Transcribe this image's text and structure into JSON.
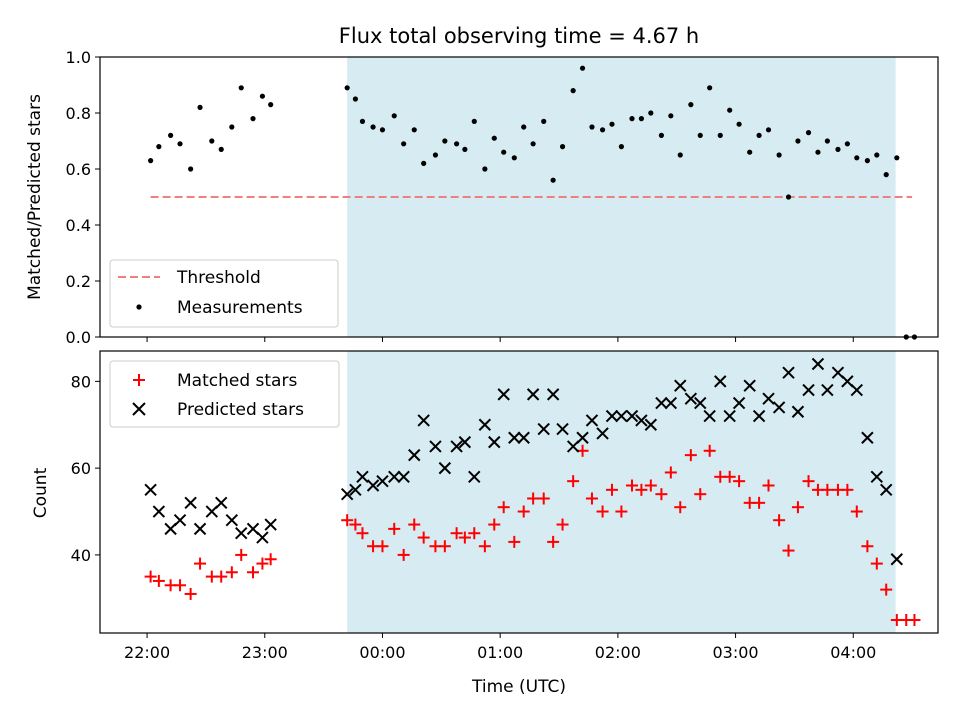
{
  "chart_data": {
    "title": "Flux total observing time = 4.67 h",
    "xlabel": "Time (UTC)",
    "x_unit": "hours UTC (values past 24 are after midnight)",
    "xlim": [
      21.6,
      28.72
    ],
    "xticks": [
      {
        "value": 22,
        "label": "22:00"
      },
      {
        "value": 23,
        "label": "23:00"
      },
      {
        "value": 24,
        "label": "00:00"
      },
      {
        "value": 25,
        "label": "01:00"
      },
      {
        "value": 26,
        "label": "02:00"
      },
      {
        "value": 27,
        "label": "03:00"
      },
      {
        "value": 28,
        "label": "04:00"
      }
    ],
    "shaded_interval": {
      "x": [
        23.7,
        28.36
      ],
      "color": "#add8e6"
    },
    "panels": [
      {
        "type": "scatter",
        "ylabel": "Matched/Predicted stars",
        "ylim": [
          0,
          1
        ],
        "yticks": [
          "0.0",
          "0.2",
          "0.4",
          "0.6",
          "0.8",
          "1.0"
        ],
        "legend_position": "lower-left",
        "threshold": {
          "name": "Threshold",
          "y": 0.5,
          "x": [
            22.03,
            28.5
          ],
          "color": "#f08080"
        },
        "series": [
          {
            "name": "Measurements",
            "marker": "dot",
            "color": "#000000",
            "x": [
              22.03,
              22.1,
              22.2,
              22.28,
              22.37,
              22.45,
              22.55,
              22.63,
              22.72,
              22.8,
              22.9,
              22.98,
              23.05,
              23.7,
              23.77,
              23.83,
              23.92,
              24.0,
              24.1,
              24.18,
              24.27,
              24.35,
              24.45,
              24.53,
              24.63,
              24.7,
              24.78,
              24.87,
              24.95,
              25.03,
              25.12,
              25.2,
              25.28,
              25.37,
              25.45,
              25.53,
              25.62,
              25.7,
              25.78,
              25.87,
              25.95,
              26.03,
              26.12,
              26.2,
              26.28,
              26.37,
              26.45,
              26.53,
              26.62,
              26.7,
              26.78,
              26.87,
              26.95,
              27.03,
              27.12,
              27.2,
              27.28,
              27.37,
              27.45,
              27.53,
              27.62,
              27.7,
              27.78,
              27.87,
              27.95,
              28.03,
              28.12,
              28.2,
              28.28,
              28.37,
              28.45,
              28.52
            ],
            "y": [
              0.63,
              0.68,
              0.72,
              0.69,
              0.6,
              0.82,
              0.7,
              0.67,
              0.75,
              0.89,
              0.78,
              0.86,
              0.83,
              0.89,
              0.85,
              0.77,
              0.75,
              0.74,
              0.79,
              0.69,
              0.74,
              0.62,
              0.65,
              0.7,
              0.69,
              0.67,
              0.77,
              0.6,
              0.71,
              0.66,
              0.64,
              0.75,
              0.69,
              0.77,
              0.56,
              0.68,
              0.88,
              0.96,
              0.75,
              0.74,
              0.76,
              0.68,
              0.78,
              0.78,
              0.8,
              0.72,
              0.79,
              0.65,
              0.83,
              0.72,
              0.89,
              0.72,
              0.81,
              0.76,
              0.66,
              0.72,
              0.74,
              0.65,
              0.5,
              0.7,
              0.73,
              0.66,
              0.7,
              0.67,
              0.69,
              0.64,
              0.63,
              0.65,
              0.58,
              0.64,
              0.0,
              0.0
            ]
          }
        ]
      },
      {
        "type": "scatter",
        "ylabel": "Count",
        "ylim": [
          22,
          87
        ],
        "yticks": [
          "40",
          "60",
          "80"
        ],
        "legend_position": "upper-left",
        "series": [
          {
            "name": "Matched stars",
            "marker": "plus",
            "color": "#ff0000",
            "x": [
              22.03,
              22.1,
              22.2,
              22.28,
              22.37,
              22.45,
              22.55,
              22.63,
              22.72,
              22.8,
              22.9,
              22.98,
              23.05,
              23.7,
              23.77,
              23.83,
              23.92,
              24.0,
              24.1,
              24.18,
              24.27,
              24.35,
              24.45,
              24.53,
              24.63,
              24.7,
              24.78,
              24.87,
              24.95,
              25.03,
              25.12,
              25.2,
              25.28,
              25.37,
              25.45,
              25.53,
              25.62,
              25.7,
              25.78,
              25.87,
              25.95,
              26.03,
              26.12,
              26.2,
              26.28,
              26.37,
              26.45,
              26.53,
              26.62,
              26.7,
              26.78,
              26.87,
              26.95,
              27.03,
              27.12,
              27.2,
              27.28,
              27.37,
              27.45,
              27.53,
              27.62,
              27.7,
              27.78,
              27.87,
              27.95,
              28.03,
              28.12,
              28.2,
              28.28,
              28.37,
              28.45,
              28.52
            ],
            "y": [
              35,
              34,
              33,
              33,
              31,
              38,
              35,
              35,
              36,
              40,
              36,
              38,
              39,
              48,
              47,
              45,
              42,
              42,
              46,
              40,
              47,
              44,
              42,
              42,
              45,
              44,
              45,
              42,
              47,
              51,
              43,
              50,
              53,
              53,
              43,
              47,
              57,
              64,
              53,
              50,
              55,
              50,
              56,
              55,
              56,
              54,
              59,
              51,
              63,
              54,
              64,
              58,
              58,
              57,
              52,
              52,
              56,
              48,
              41,
              51,
              57,
              55,
              55,
              55,
              55,
              50,
              42,
              38,
              32,
              25,
              25,
              25
            ]
          },
          {
            "name": "Predicted stars",
            "marker": "x",
            "color": "#000000",
            "x": [
              22.03,
              22.1,
              22.2,
              22.28,
              22.37,
              22.45,
              22.55,
              22.63,
              22.72,
              22.8,
              22.9,
              22.98,
              23.05,
              23.7,
              23.77,
              23.83,
              23.92,
              24.0,
              24.1,
              24.18,
              24.27,
              24.35,
              24.45,
              24.53,
              24.63,
              24.7,
              24.78,
              24.87,
              24.95,
              25.03,
              25.12,
              25.2,
              25.28,
              25.37,
              25.45,
              25.53,
              25.62,
              25.7,
              25.78,
              25.87,
              25.95,
              26.03,
              26.12,
              26.2,
              26.28,
              26.37,
              26.45,
              26.53,
              26.62,
              26.7,
              26.78,
              26.87,
              26.95,
              27.03,
              27.12,
              27.2,
              27.28,
              27.37,
              27.45,
              27.53,
              27.62,
              27.7,
              27.78,
              27.87,
              27.95,
              28.03,
              28.12,
              28.2,
              28.28,
              28.37
            ],
            "y": [
              55,
              50,
              46,
              48,
              52,
              46,
              50,
              52,
              48,
              45,
              46,
              44,
              47,
              54,
              55,
              58,
              56,
              57,
              58,
              58,
              63,
              71,
              65,
              60,
              65,
              66,
              58,
              70,
              66,
              77,
              67,
              67,
              77,
              69,
              77,
              69,
              65,
              67,
              71,
              68,
              72,
              72,
              72,
              71,
              70,
              75,
              75,
              79,
              76,
              75,
              72,
              80,
              72,
              75,
              79,
              72,
              76,
              74,
              82,
              73,
              78,
              84,
              78,
              82,
              80,
              78,
              67,
              58,
              55,
              39
            ]
          }
        ]
      }
    ]
  }
}
